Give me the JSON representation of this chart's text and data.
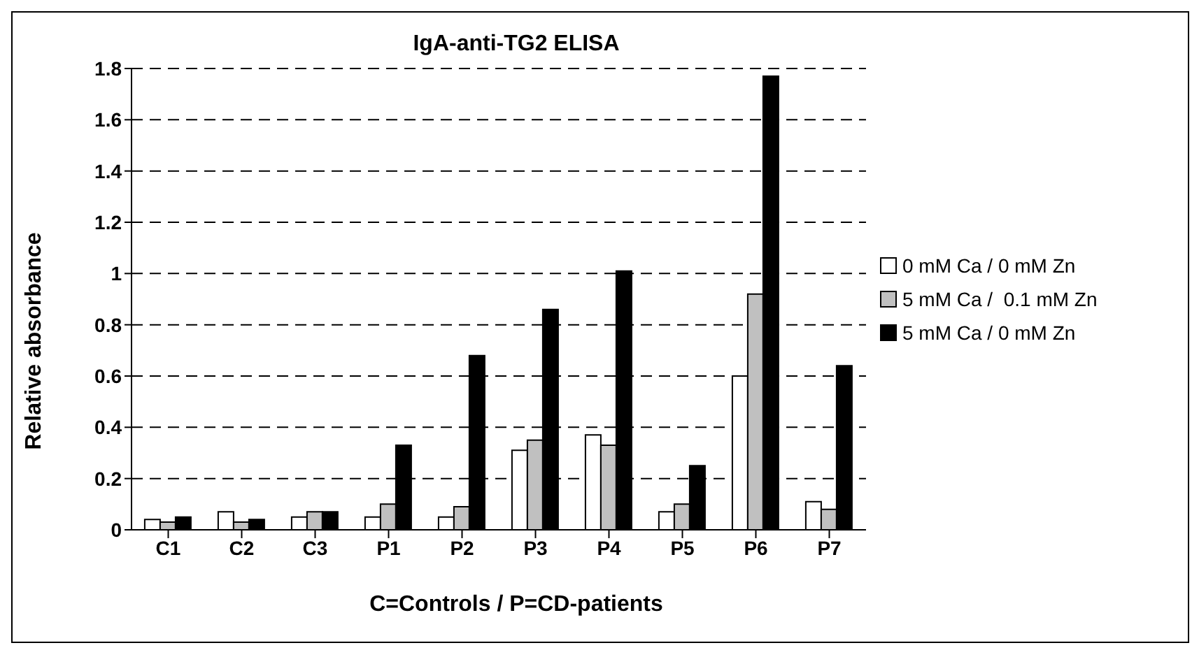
{
  "chart_data": {
    "type": "bar",
    "title": "IgA-anti-TG2 ELISA",
    "xlabel": "C=Controls / P=CD-patients",
    "ylabel": "Relative absorbance",
    "categories": [
      "C1",
      "C2",
      "C3",
      "P1",
      "P2",
      "P3",
      "P4",
      "P5",
      "P6",
      "P7"
    ],
    "series": [
      {
        "name": "0 mM Ca / 0 mM Zn",
        "color": "#ffffff",
        "values": [
          0.04,
          0.07,
          0.05,
          0.05,
          0.05,
          0.31,
          0.37,
          0.07,
          0.6,
          0.11
        ]
      },
      {
        "name": "5 mM Ca /  0.1 mM Zn",
        "color": "#c0c0c0",
        "values": [
          0.03,
          0.03,
          0.07,
          0.1,
          0.09,
          0.35,
          0.33,
          0.1,
          0.92,
          0.08
        ]
      },
      {
        "name": "5 mM Ca / 0 mM Zn",
        "color": "#000000",
        "values": [
          0.05,
          0.04,
          0.07,
          0.33,
          0.68,
          0.86,
          1.01,
          0.25,
          1.77,
          0.64
        ]
      }
    ],
    "ylim": [
      0,
      1.8
    ],
    "yticks": [
      0,
      0.2,
      0.4,
      0.6,
      0.8,
      1,
      1.2,
      1.4,
      1.6,
      1.8
    ],
    "grid": "y",
    "legend": "right"
  }
}
